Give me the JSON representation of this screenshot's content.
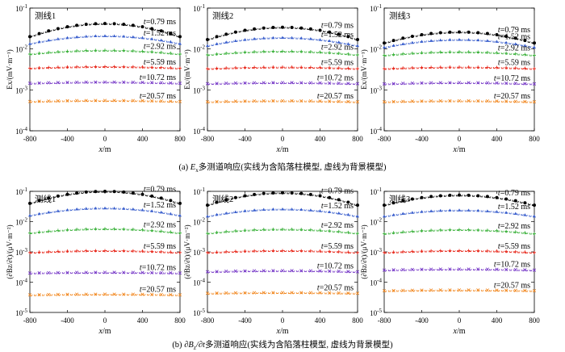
{
  "captions": {
    "top_prefix": "(a) ",
    "top_var": "E",
    "top_sub": "x",
    "top_rest": "多测道响应(实线为含陷落柱模型, 虚线为背景模型)",
    "bottom_prefix": "(b) ",
    "bottom_var": "∂B",
    "bottom_sub": "z",
    "bottom_mid": "/∂t",
    "bottom_rest": "多测道响应(实线为含陷落柱模型, 虚线为背景模型)"
  },
  "series_colors": [
    "#000000",
    "#3a5fcd",
    "#3cb23c",
    "#e8291c",
    "#7b3fc9",
    "#f28c28"
  ],
  "time_labels": [
    "t=0.79 ms",
    "t=1.52 ms",
    "t=2.92 ms",
    "t=5.59 ms",
    "t=10.72 ms",
    "t=20.57 ms"
  ],
  "chart_data": [
    {
      "type": "line",
      "row": "Ex",
      "title": "测线1",
      "xlabel": "x/m",
      "ylabel": "Ex/(mV·m⁻¹)",
      "xlim": [
        -800,
        800
      ],
      "ylim": [
        0.0001,
        0.1
      ],
      "yscale": "log",
      "xticks": [
        "-800",
        "-400",
        "0",
        "400",
        "800"
      ],
      "yticks": [
        "10⁻⁴",
        "10⁻³",
        "10⁻²",
        "10⁻¹"
      ],
      "series": [
        {
          "name": "t=0.79 ms",
          "peak": 0.042,
          "edge": 0.02
        },
        {
          "name": "t=1.52 ms",
          "peak": 0.021,
          "edge": 0.0135
        },
        {
          "name": "t=2.92 ms",
          "peak": 0.0093,
          "edge": 0.0075
        },
        {
          "name": "t=5.59 ms",
          "peak": 0.0037,
          "edge": 0.0034
        },
        {
          "name": "t=10.72 ms",
          "peak": 0.00155,
          "edge": 0.00145
        },
        {
          "name": "t=20.57 ms",
          "peak": 0.00055,
          "edge": 0.00052
        }
      ]
    },
    {
      "type": "line",
      "row": "Ex",
      "title": "测线2",
      "xlabel": "x/m",
      "ylabel": "Ex/(mV·m⁻¹)",
      "xlim": [
        -800,
        800
      ],
      "ylim": [
        0.0001,
        0.1
      ],
      "yscale": "log",
      "xticks": [
        "-800",
        "-400",
        "0",
        "400",
        "800"
      ],
      "yticks": [
        "10⁻⁴",
        "10⁻³",
        "10⁻²",
        "10⁻¹"
      ],
      "series": [
        {
          "name": "t=0.79 ms",
          "peak": 0.034,
          "edge": 0.017
        },
        {
          "name": "t=1.52 ms",
          "peak": 0.019,
          "edge": 0.012
        },
        {
          "name": "t=2.92 ms",
          "peak": 0.0088,
          "edge": 0.0072
        },
        {
          "name": "t=5.59 ms",
          "peak": 0.0036,
          "edge": 0.0033
        },
        {
          "name": "t=10.72 ms",
          "peak": 0.0015,
          "edge": 0.00142
        },
        {
          "name": "t=20.57 ms",
          "peak": 0.00054,
          "edge": 0.00051
        }
      ]
    },
    {
      "type": "line",
      "row": "Ex",
      "title": "测线3",
      "xlabel": "x/m",
      "ylabel": "Ex/(mV·m⁻¹)",
      "xlim": [
        -800,
        800
      ],
      "ylim": [
        0.0001,
        0.1
      ],
      "yscale": "log",
      "xticks": [
        "-800",
        "-400",
        "0",
        "400",
        "800"
      ],
      "yticks": [
        "10⁻⁴",
        "10⁻³",
        "10⁻²",
        "10⁻¹"
      ],
      "series": [
        {
          "name": "t=0.79 ms",
          "peak": 0.026,
          "edge": 0.014
        },
        {
          "name": "t=1.52 ms",
          "peak": 0.017,
          "edge": 0.011
        },
        {
          "name": "t=2.92 ms",
          "peak": 0.0085,
          "edge": 0.007
        },
        {
          "name": "t=5.59 ms",
          "peak": 0.0036,
          "edge": 0.0033
        },
        {
          "name": "t=10.72 ms",
          "peak": 0.0015,
          "edge": 0.0014
        },
        {
          "name": "t=20.57 ms",
          "peak": 0.00054,
          "edge": 0.00051
        }
      ]
    },
    {
      "type": "line",
      "row": "dBz",
      "title": "测线1",
      "xlabel": "x/m",
      "ylabel": "(∂Bz/∂t)/(μV·m⁻²)",
      "xlim": [
        -800,
        800
      ],
      "ylim": [
        1e-05,
        0.1
      ],
      "yscale": "log",
      "xticks": [
        "-800",
        "-400",
        "0",
        "400",
        "800"
      ],
      "yticks": [
        "10⁻⁵",
        "10⁻⁴",
        "10⁻³",
        "10⁻²",
        "10⁻¹"
      ],
      "series": [
        {
          "name": "t=0.79 ms",
          "peak": 0.1,
          "edge": 0.04
        },
        {
          "name": "t=1.52 ms",
          "peak": 0.028,
          "edge": 0.016
        },
        {
          "name": "t=2.92 ms",
          "peak": 0.0058,
          "edge": 0.0042
        },
        {
          "name": "t=5.59 ms",
          "peak": 0.0011,
          "edge": 0.00095
        },
        {
          "name": "t=10.72 ms",
          "peak": 0.00021,
          "edge": 0.0002
        },
        {
          "name": "t=20.57 ms",
          "peak": 4e-05,
          "edge": 3.8e-05
        }
      ]
    },
    {
      "type": "line",
      "row": "dBz",
      "title": "测线2",
      "xlabel": "x/m",
      "ylabel": "(∂Bz/∂t)/(μV·m⁻²)",
      "xlim": [
        -800,
        800
      ],
      "ylim": [
        1e-05,
        0.1
      ],
      "yscale": "log",
      "xticks": [
        "-800",
        "-400",
        "0",
        "400",
        "800"
      ],
      "yticks": [
        "10⁻⁵",
        "10⁻⁴",
        "10⁻³",
        "10⁻²",
        "10⁻¹"
      ],
      "series": [
        {
          "name": "t=0.79 ms",
          "peak": 0.09,
          "edge": 0.035
        },
        {
          "name": "t=1.52 ms",
          "peak": 0.026,
          "edge": 0.015
        },
        {
          "name": "t=2.92 ms",
          "peak": 0.0056,
          "edge": 0.0041
        },
        {
          "name": "t=5.59 ms",
          "peak": 0.0011,
          "edge": 0.00095
        },
        {
          "name": "t=10.72 ms",
          "peak": 0.00024,
          "edge": 0.00022
        },
        {
          "name": "t=20.57 ms",
          "peak": 4.5e-05,
          "edge": 4.3e-05
        }
      ]
    },
    {
      "type": "line",
      "row": "dBz",
      "title": "测线3",
      "xlabel": "x/m",
      "ylabel": "(∂Bz/∂t)/(μV·m⁻²)",
      "xlim": [
        -800,
        800
      ],
      "ylim": [
        1e-05,
        0.1
      ],
      "yscale": "log",
      "xticks": [
        "-800",
        "-400",
        "0",
        "400",
        "800"
      ],
      "yticks": [
        "10⁻⁵",
        "10⁻⁴",
        "10⁻³",
        "10⁻²",
        "10⁻¹"
      ],
      "series": [
        {
          "name": "t=0.79 ms",
          "peak": 0.075,
          "edge": 0.035
        },
        {
          "name": "t=1.52 ms",
          "peak": 0.024,
          "edge": 0.015
        },
        {
          "name": "t=2.92 ms",
          "peak": 0.0054,
          "edge": 0.004
        },
        {
          "name": "t=5.59 ms",
          "peak": 0.0011,
          "edge": 0.00095
        },
        {
          "name": "t=10.72 ms",
          "peak": 0.00027,
          "edge": 0.00025
        },
        {
          "name": "t=20.57 ms",
          "peak": 5.5e-05,
          "edge": 5.2e-05
        }
      ]
    }
  ]
}
